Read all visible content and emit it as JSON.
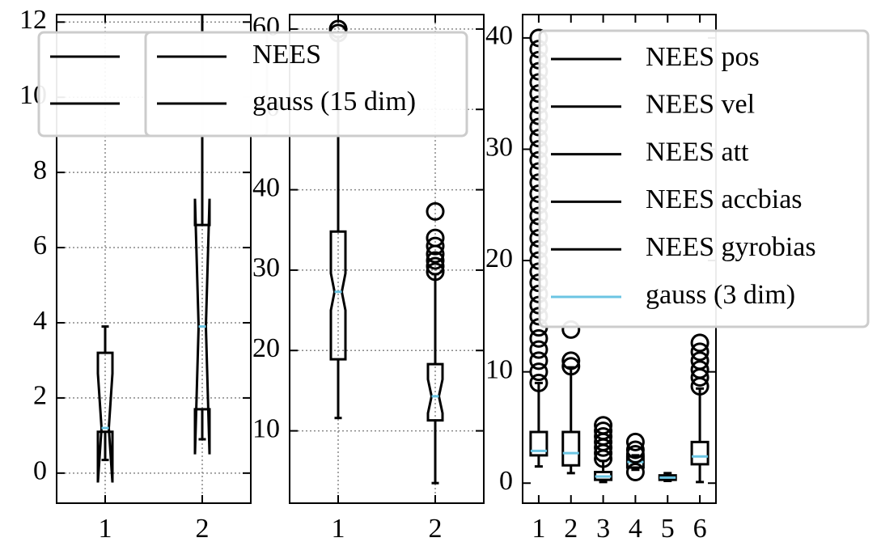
{
  "chart_data": [
    {
      "type": "box",
      "categories": [
        "1",
        "2"
      ],
      "xlim": [
        0.5,
        2.5
      ],
      "ylim": [
        -0.8,
        12.2
      ],
      "yticks": [
        0,
        2,
        4,
        6,
        8,
        10,
        12
      ],
      "grid": true,
      "box_color": "#000000",
      "median_color": "#6bc5e3",
      "boxes": [
        {
          "whislo": 0.35,
          "q1": 1.1,
          "med": 1.2,
          "q3": 3.2,
          "whishi": 3.9,
          "notch": [
            -0.25,
            2.65
          ],
          "fliers": []
        },
        {
          "whislo": 0.9,
          "q1": 1.7,
          "med": 3.9,
          "q3": 6.6,
          "whishi": 13,
          "notch": [
            0.5,
            7.3
          ],
          "fliers": []
        }
      ],
      "legend": {
        "entries": [
          {
            "color": "#000000"
          },
          {
            "color": "#000000"
          }
        ]
      }
    },
    {
      "type": "box",
      "categories": [
        "1",
        "2"
      ],
      "xlim": [
        0.5,
        2.5
      ],
      "ylim": [
        1,
        61.8
      ],
      "yticks": [
        10,
        20,
        30,
        40,
        50,
        60
      ],
      "grid": true,
      "box_color": "#000000",
      "median_color": "#6bc5e3",
      "boxes": [
        {
          "whislo": 11.6,
          "q1": 18.9,
          "med": 27.3,
          "q3": 34.8,
          "whishi": 59,
          "notch": [
            25,
            29.6
          ],
          "fliers": [
            59.5,
            60
          ]
        },
        {
          "whislo": 3.5,
          "q1": 11.3,
          "med": 14.3,
          "q3": 18.3,
          "whishi": 29.5,
          "notch": [
            12.2,
            16.4
          ],
          "fliers": [
            29.8,
            30.5,
            31.2,
            32,
            33,
            34,
            37.3
          ]
        }
      ],
      "legend": {
        "entries": [
          {
            "name": "NEES",
            "color": "#000000"
          },
          {
            "name": "gauss (15 dim)",
            "color": "#000000"
          }
        ]
      }
    },
    {
      "type": "box",
      "categories": [
        "1",
        "2",
        "3",
        "4",
        "5",
        "6"
      ],
      "xlim": [
        0.5,
        6.5
      ],
      "ylim": [
        -1.8,
        42.1
      ],
      "yticks": [
        0,
        10,
        20,
        30,
        40
      ],
      "grid": false,
      "box_color": "#000000",
      "median_color": "#6bc5e3",
      "boxes": [
        {
          "whislo": 1.5,
          "q1": 2.5,
          "med": 2.9,
          "q3": 4.6,
          "whishi": 9,
          "fliers": [
            9,
            10,
            11,
            12,
            13,
            14,
            15,
            16,
            17,
            18,
            19,
            20,
            21,
            22,
            23,
            24,
            25,
            26,
            27,
            28,
            29,
            30,
            31,
            32,
            33,
            34,
            35,
            36,
            37,
            38,
            39,
            40
          ]
        },
        {
          "whislo": 0.9,
          "q1": 1.6,
          "med": 2.7,
          "q3": 4.6,
          "whishi": 10.4,
          "fliers": [
            10.5,
            11,
            13.8
          ]
        },
        {
          "whislo": 0.1,
          "q1": 0.3,
          "med": 0.6,
          "q3": 1.0,
          "whishi": 2,
          "fliers": [
            2.2,
            2.7,
            3.2,
            3.7,
            4.2,
            4.7,
            5.2
          ]
        },
        {
          "whislo": 1.2,
          "q1": 1.4,
          "med": 1.9,
          "q3": 2.4,
          "whishi": 2.5,
          "fliers": [
            1,
            2.6,
            3,
            3.7
          ]
        },
        {
          "whislo": 0.2,
          "q1": 0.3,
          "med": 0.5,
          "q3": 0.7,
          "whishi": 0.9,
          "fliers": []
        },
        {
          "whislo": 0.1,
          "q1": 1.7,
          "med": 2.4,
          "q3": 3.7,
          "whishi": 8.5,
          "fliers": [
            8.7,
            9.5,
            10.2,
            11,
            11.8,
            12.6
          ]
        }
      ],
      "legend": {
        "entries": [
          {
            "name": "NEES pos",
            "color": "#000000"
          },
          {
            "name": "NEES vel",
            "color": "#000000"
          },
          {
            "name": "NEES att",
            "color": "#000000"
          },
          {
            "name": "NEES accbias",
            "color": "#000000"
          },
          {
            "name": "NEES gyrobias",
            "color": "#000000"
          },
          {
            "name": "gauss (3 dim)",
            "color": "#6bc5e3"
          }
        ]
      }
    }
  ]
}
